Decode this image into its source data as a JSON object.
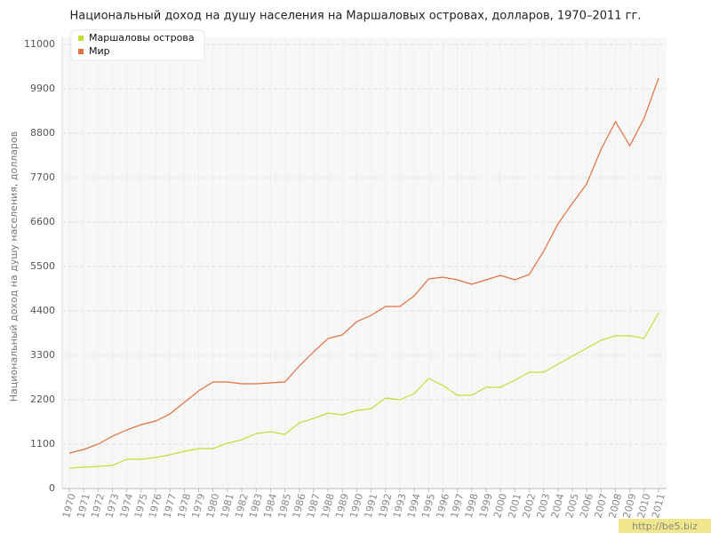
{
  "chart_data": {
    "type": "line",
    "title": "Национальный доход на душу населения на Маршаловых островах, долларов, 1970–2011 гг.",
    "y_label": "Национальный доход на душу населения, долларов",
    "categories": [
      "1970",
      "1971",
      "1972",
      "1973",
      "1974",
      "1975",
      "1976",
      "1977",
      "1978",
      "1979",
      "1980",
      "1981",
      "1982",
      "1983",
      "1984",
      "1985",
      "1986",
      "1987",
      "1988",
      "1989",
      "1990",
      "1991",
      "1992",
      "1993",
      "1994",
      "1995",
      "1996",
      "1997",
      "1998",
      "1999",
      "2000",
      "2001",
      "2002",
      "2003",
      "2004",
      "2005",
      "2006",
      "2007",
      "2008",
      "2009",
      "2010",
      "2011"
    ],
    "series": [
      {
        "name": "Маршаловы острова",
        "color": "#c3dd3b",
        "values": [
          506,
          528,
          550,
          572,
          726,
          726,
          770,
          836,
          924,
          990,
          990,
          1122,
          1210,
          1364,
          1408,
          1342,
          1628,
          1738,
          1870,
          1826,
          1936,
          1980,
          2244,
          2200,
          2354,
          2728,
          2552,
          2310,
          2310,
          2508,
          2508,
          2684,
          2882,
          2882,
          3080,
          3278,
          3476,
          3674,
          3784,
          3784,
          3718,
          4356
        ]
      },
      {
        "name": "Мир",
        "color": "#e2703e",
        "values": [
          880,
          968,
          1100,
          1298,
          1452,
          1584,
          1672,
          1848,
          2134,
          2420,
          2640,
          2640,
          2596,
          2596,
          2618,
          2640,
          3036,
          3388,
          3718,
          3806,
          4136,
          4290,
          4510,
          4510,
          4774,
          5192,
          5236,
          5170,
          5060,
          5170,
          5280,
          5170,
          5302,
          5874,
          6556,
          7062,
          7546,
          8404,
          9086,
          8492,
          9174,
          10164
        ]
      }
    ],
    "ylim": [
      0,
      11000
    ],
    "yticks": [
      0,
      1100,
      2200,
      3300,
      4400,
      5500,
      6600,
      7700,
      8800,
      9900,
      11000
    ],
    "grid": true,
    "legend": "top-left",
    "watermark": "http://be5.biz"
  }
}
